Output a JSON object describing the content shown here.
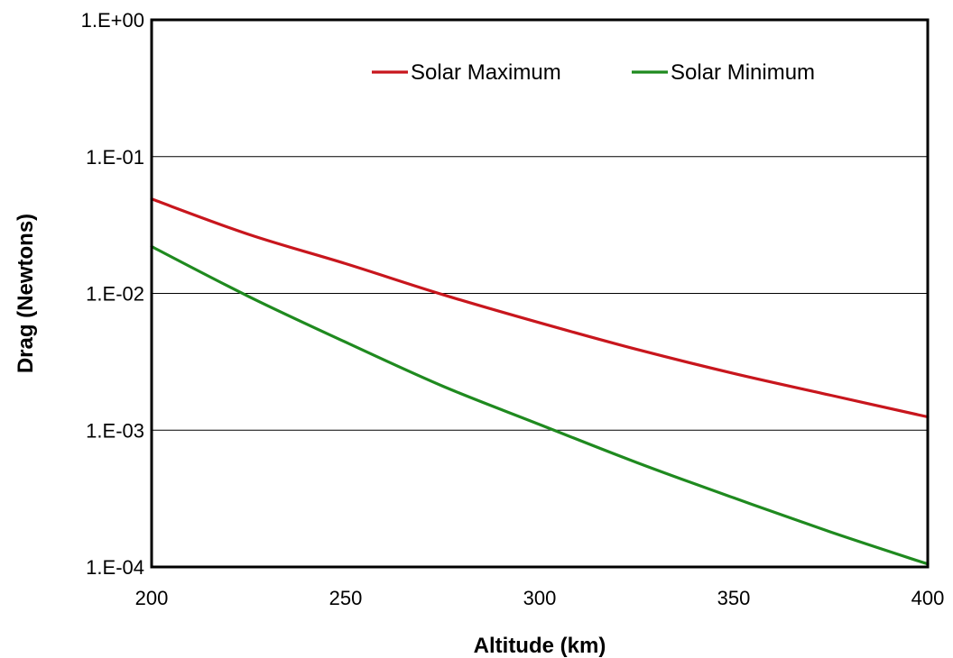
{
  "chart_data": {
    "type": "line",
    "title": "",
    "xlabel": "Altitude (km)",
    "ylabel": "Drag (Newtons)",
    "xlim": [
      200,
      400
    ],
    "ylim": [
      0.0001,
      1
    ],
    "yscale": "log",
    "x_ticks": [
      200,
      250,
      300,
      350,
      400
    ],
    "x_tick_labels": [
      "200",
      "250",
      "300",
      "350",
      "400"
    ],
    "y_ticks": [
      0.0001,
      0.001,
      0.01,
      0.1,
      1
    ],
    "y_tick_labels": [
      "1.E-04",
      "1.E-03",
      "1.E-02",
      "1.E-01",
      "1.E+00"
    ],
    "grid": "horizontal",
    "legend_position": "top",
    "x": [
      200,
      225,
      250,
      275,
      300,
      325,
      350,
      375,
      400
    ],
    "series": [
      {
        "name": "Solar Maximum",
        "color": "#c8161d",
        "values": [
          0.049,
          0.027,
          0.0165,
          0.0098,
          0.0061,
          0.0039,
          0.0026,
          0.0018,
          0.00125
        ]
      },
      {
        "name": "Solar Minimum",
        "color": "#1f8a1f",
        "values": [
          0.022,
          0.0095,
          0.0044,
          0.0021,
          0.0011,
          0.00058,
          0.00032,
          0.00018,
          0.000105
        ]
      }
    ]
  }
}
